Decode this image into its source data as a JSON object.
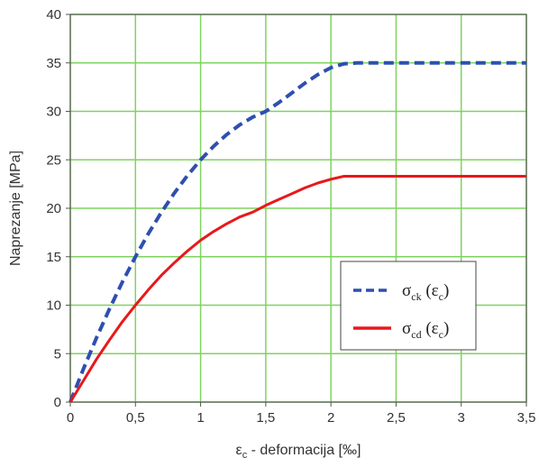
{
  "chart_data": {
    "type": "line",
    "xlabel_symbol": "ε",
    "xlabel_symbol_sub": "c",
    "xlabel_rest": " - deformacija [‰]",
    "ylabel": "Naprezanje [MPa]",
    "xlim": [
      0,
      3.5
    ],
    "ylim": [
      0,
      40
    ],
    "x_ticks": [
      0,
      0.5,
      1,
      1.5,
      2,
      2.5,
      3,
      3.5
    ],
    "x_tick_labels": [
      "0",
      "0,5",
      "1",
      "1,5",
      "2",
      "2,5",
      "3",
      "3,5"
    ],
    "y_ticks": [
      0,
      5,
      10,
      15,
      20,
      25,
      30,
      35,
      40
    ],
    "y_tick_labels": [
      "0",
      "5",
      "10",
      "15",
      "20",
      "25",
      "30",
      "35",
      "40"
    ],
    "grid": true,
    "grid_color": "#7fd35f",
    "legend_position": "center-right",
    "series": [
      {
        "legend_symbol": "σ",
        "legend_sub": "ck",
        "legend_arg_symbol": "ε",
        "legend_arg_sub": "c",
        "color": "#2e4fb0",
        "style": "dashed",
        "x": [
          0,
          0.1,
          0.2,
          0.3,
          0.4,
          0.5,
          0.6,
          0.7,
          0.8,
          0.9,
          1.0,
          1.1,
          1.2,
          1.3,
          1.4,
          1.5,
          1.6,
          1.7,
          1.8,
          1.9,
          2.0,
          2.1,
          2.2,
          2.5,
          3.0,
          3.5
        ],
        "y": [
          0,
          3.4,
          6.6,
          9.6,
          12.4,
          15.0,
          17.4,
          19.6,
          21.6,
          23.4,
          25.0,
          26.4,
          27.6,
          28.6,
          29.4,
          30.0,
          30.9,
          31.9,
          32.9,
          33.8,
          34.5,
          34.9,
          35.0,
          35.0,
          35.0,
          35.0
        ]
      },
      {
        "legend_symbol": "σ",
        "legend_sub": "cd",
        "legend_arg_symbol": "ε",
        "legend_arg_sub": "c",
        "color": "#e8181c",
        "style": "solid",
        "x": [
          0,
          0.1,
          0.2,
          0.3,
          0.4,
          0.5,
          0.6,
          0.7,
          0.8,
          0.9,
          1.0,
          1.1,
          1.2,
          1.3,
          1.4,
          1.5,
          1.6,
          1.7,
          1.8,
          1.9,
          2.0,
          2.1,
          2.2,
          2.5,
          3.0,
          3.5
        ],
        "y": [
          0,
          2.2,
          4.4,
          6.4,
          8.3,
          10.0,
          11.6,
          13.1,
          14.4,
          15.6,
          16.7,
          17.6,
          18.4,
          19.1,
          19.6,
          20.3,
          20.9,
          21.5,
          22.1,
          22.6,
          23.0,
          23.3,
          23.3,
          23.3,
          23.3,
          23.3
        ]
      }
    ]
  }
}
